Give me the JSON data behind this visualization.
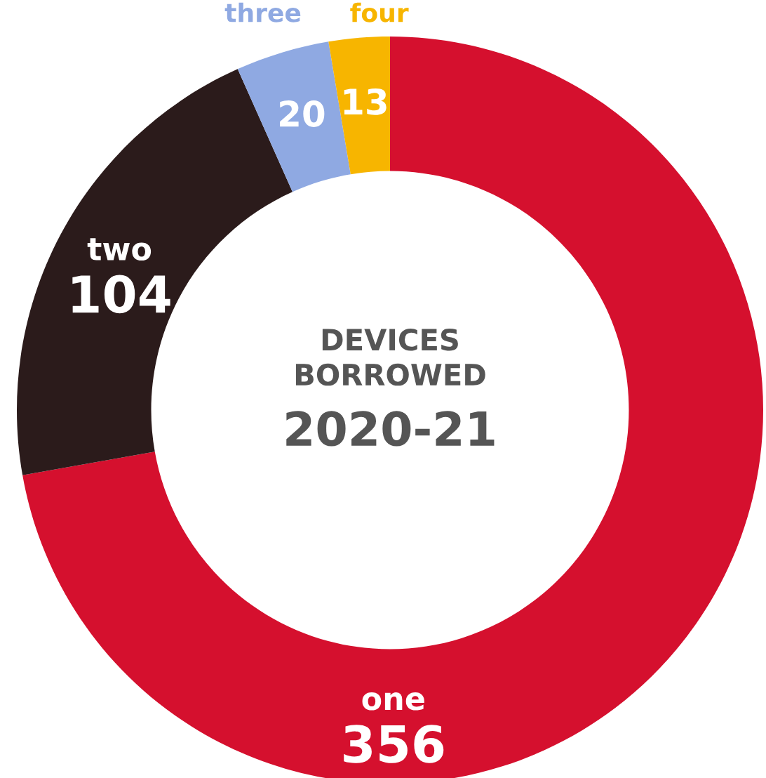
{
  "chart_data": {
    "type": "donut",
    "title": "DEVICES\nBORROWED",
    "subtitle": "2020-21",
    "categories": [
      "one",
      "two",
      "three",
      "four"
    ],
    "values": [
      356,
      104,
      20,
      13
    ],
    "colors": [
      "#d5102e",
      "#2b1b1b",
      "#8fa9e2",
      "#f7b500"
    ],
    "data_labels": true,
    "legend": false
  }
}
